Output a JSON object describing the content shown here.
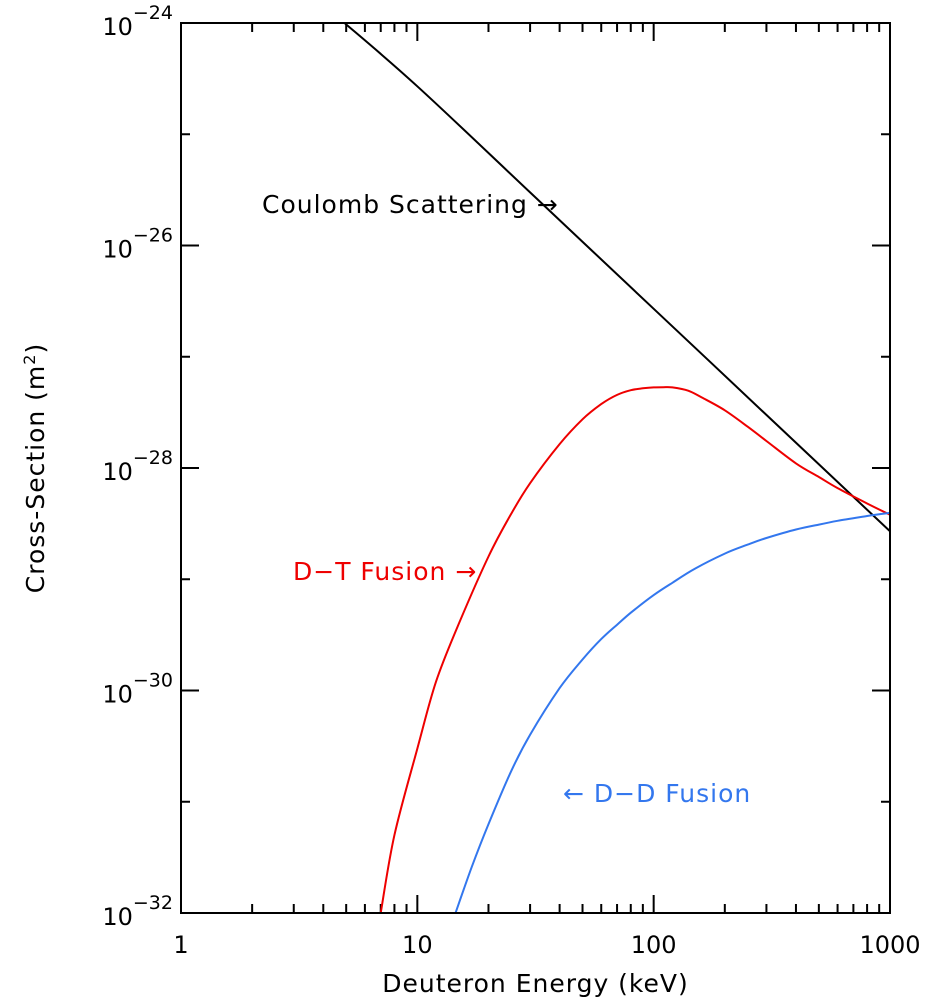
{
  "chart_data": {
    "type": "line",
    "title": "",
    "xlabel": "Deuteron Energy (keV)",
    "ylabel": "Cross-Section (m",
    "ylabel_sup": "2",
    "ylabel_close": ")",
    "x_scale": "log",
    "y_scale": "log",
    "xlim": [
      1,
      1000
    ],
    "ylim": [
      1e-32,
      1e-24
    ],
    "grid": false,
    "x_ticks": [
      {
        "value": 1,
        "label": "1"
      },
      {
        "value": 10,
        "label": "10"
      },
      {
        "value": 100,
        "label": "100"
      },
      {
        "value": 1000,
        "label": "1000"
      }
    ],
    "y_ticks": [
      {
        "value": 1e-24,
        "base": "10",
        "exp": "−24"
      },
      {
        "value": 1e-26,
        "base": "10",
        "exp": "−26"
      },
      {
        "value": 1e-28,
        "base": "10",
        "exp": "−28"
      },
      {
        "value": 1e-30,
        "base": "10",
        "exp": "−30"
      },
      {
        "value": 1e-32,
        "base": "10",
        "exp": "−32"
      }
    ],
    "series": [
      {
        "name": "Coulomb Scattering",
        "color": "#000000",
        "x": [
          4.92,
          10,
          30,
          100,
          300,
          1000
        ],
        "y": [
          1e-24,
          2.7e-25,
          3e-26,
          2.7e-27,
          3e-28,
          2.7e-29
        ]
      },
      {
        "name": "D-T Fusion",
        "color": "#ee0000",
        "x": [
          7.0,
          8,
          10,
          12,
          15,
          20,
          25,
          30,
          40,
          50,
          60,
          70,
          80,
          90,
          100,
          110,
          120,
          140,
          160,
          200,
          250,
          300,
          400,
          500,
          600,
          800,
          1000
        ],
        "y": [
          1e-32,
          5e-32,
          3e-31,
          1.2e-30,
          4e-30,
          1.6e-29,
          3.9e-29,
          7.3e-29,
          1.64e-28,
          2.74e-28,
          3.75e-28,
          4.54e-28,
          5e-28,
          5.2e-28,
          5.3e-28,
          5.32e-28,
          5.3e-28,
          4.95e-28,
          4.3e-28,
          3.3e-28,
          2.35e-28,
          1.75e-28,
          1.1e-28,
          8.3e-29,
          6.6e-29,
          4.8e-29,
          3.8e-29
        ]
      },
      {
        "name": "D-D Fusion",
        "color": "#3377ee",
        "x": [
          14.5,
          17,
          20,
          25,
          30,
          40,
          50,
          60,
          70,
          80,
          100,
          120,
          150,
          200,
          250,
          300,
          400,
          500,
          600,
          800,
          1000
        ],
        "y": [
          1e-32,
          2.6e-32,
          6.3e-32,
          1.9e-31,
          4e-31,
          1.05e-30,
          1.9e-30,
          2.9e-30,
          3.9e-30,
          5e-30,
          7.2e-30,
          9.3e-30,
          1.25e-29,
          1.7e-29,
          2.05e-29,
          2.35e-29,
          2.8e-29,
          3.1e-29,
          3.35e-29,
          3.7e-29,
          3.95e-29
        ]
      }
    ],
    "annotations": [
      {
        "name": "coulomb-annotation",
        "text": "Coulomb Scattering →",
        "color": "#000000"
      },
      {
        "name": "dt-annotation",
        "text": "D−T Fusion →",
        "color": "#ee0000"
      },
      {
        "name": "dd-annotation",
        "text": "← D−D Fusion",
        "color": "#3377ee"
      }
    ]
  }
}
